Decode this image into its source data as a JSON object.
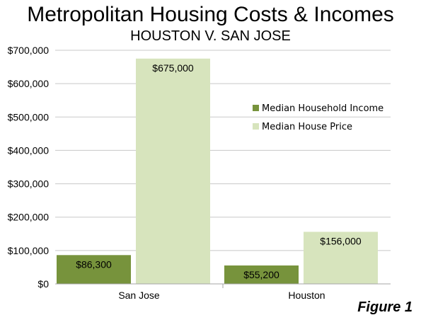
{
  "chart_data": {
    "type": "bar",
    "title": "Metropolitan Housing Costs & Incomes",
    "subtitle": "HOUSTON V. SAN JOSE",
    "categories": [
      "San Jose",
      "Houston"
    ],
    "series": [
      {
        "name": "Median Household Income",
        "values": [
          86300,
          55200
        ],
        "labels": [
          "$86,300",
          "$55,200"
        ],
        "color": "#77933c"
      },
      {
        "name": "Median House Price",
        "values": [
          675000,
          156000
        ],
        "labels": [
          "$675,000",
          "$156,000"
        ],
        "color": "#d7e4bd"
      }
    ],
    "ylim": [
      0,
      700000
    ],
    "yticks": [
      0,
      100000,
      200000,
      300000,
      400000,
      500000,
      600000,
      700000
    ],
    "ytick_labels": [
      "$0",
      "$100,000",
      "$200,000",
      "$300,000",
      "$400,000",
      "$500,000",
      "$600,000",
      "$700,000"
    ],
    "xlabel": "",
    "ylabel": "",
    "grid": true,
    "legend_position": "right",
    "grid_color": "#c8c8c8"
  },
  "figure_label": "Figure 1"
}
